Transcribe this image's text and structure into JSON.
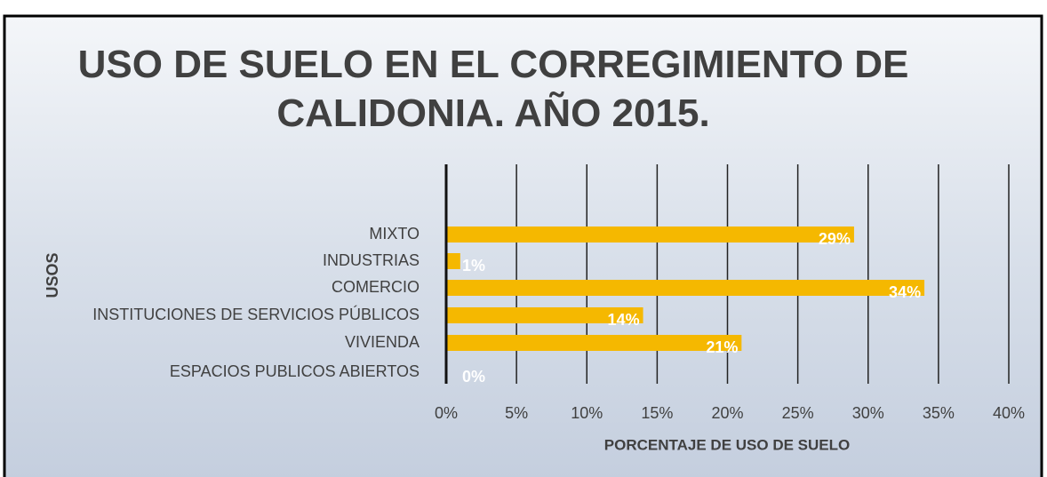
{
  "chart_data": {
    "type": "barh",
    "title": "USO DE SUELO EN EL CORREGIMIENTO DE CALIDONIA. AÑO 2015.",
    "categories": [
      "MIXTO",
      "INDUSTRIAS",
      "COMERCIO",
      "INSTITUCIONES  DE SERVICIOS PÚBLICOS",
      "VIVIENDA",
      "ESPACIOS PUBLICOS ABIERTOS"
    ],
    "values": [
      29,
      1,
      34,
      14,
      21,
      0
    ],
    "value_labels": [
      "29%",
      "1%",
      "34%",
      "14%",
      "21%",
      "0%"
    ],
    "color": "#f5b800",
    "xlim": [
      0,
      40
    ],
    "xticks": [
      {
        "value": 0,
        "label": "0%"
      },
      {
        "value": 5,
        "label": "5%"
      },
      {
        "value": 10,
        "label": "10%"
      },
      {
        "value": 15,
        "label": "15%"
      },
      {
        "value": 20,
        "label": "20%"
      },
      {
        "value": 25,
        "label": "25%"
      },
      {
        "value": 30,
        "label": "30%"
      },
      {
        "value": 35,
        "label": "35%"
      },
      {
        "value": 40,
        "label": "40%"
      }
    ],
    "xlabel": "PORCENTAJE DE USO DE SUELO",
    "ylabel": "USOS",
    "grid": true
  }
}
